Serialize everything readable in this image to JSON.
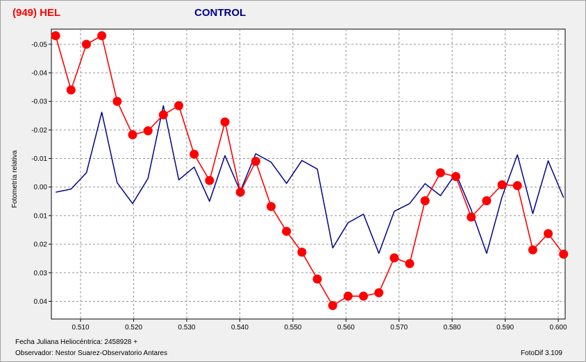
{
  "header": {
    "left_title": "(949) HEL",
    "right_title": "CONTROL",
    "left_color": "#ff0000",
    "right_color": "#00008b"
  },
  "axes": {
    "ylabel": "Fotometría relativa"
  },
  "footer": {
    "jd_label": "Fecha Juliana Heliocéntrica: 2458928 +",
    "observer": "Observador: Nestor Suarez-Observatorio Antares",
    "software": "FotoDif 3.109"
  },
  "chart_data": {
    "type": "line",
    "title": "",
    "xlabel": "",
    "ylabel": "Fotometría relativa",
    "xlim": [
      0.5045,
      0.6013
    ],
    "ylim": [
      -0.0553,
      0.0462
    ],
    "y_inverted": true,
    "grid": true,
    "x_ticks": [
      {
        "value": 0.51,
        "label": "0.510"
      },
      {
        "value": 0.52,
        "label": "0.520"
      },
      {
        "value": 0.53,
        "label": "0.530"
      },
      {
        "value": 0.54,
        "label": "0.540"
      },
      {
        "value": 0.55,
        "label": "0.550"
      },
      {
        "value": 0.56,
        "label": "0.560"
      },
      {
        "value": 0.57,
        "label": "0.570"
      },
      {
        "value": 0.58,
        "label": "0.580"
      },
      {
        "value": 0.59,
        "label": "0.590"
      },
      {
        "value": 0.6,
        "label": "0.600"
      }
    ],
    "y_ticks": [
      {
        "value": -0.05,
        "label": "-0.05"
      },
      {
        "value": -0.04,
        "label": "-0.04"
      },
      {
        "value": -0.03,
        "label": "-0.03"
      },
      {
        "value": -0.02,
        "label": "-0.02"
      },
      {
        "value": -0.01,
        "label": "-0.01"
      },
      {
        "value": 0.0,
        "label": "0.00"
      },
      {
        "value": 0.01,
        "label": "0.01"
      },
      {
        "value": 0.02,
        "label": "0.02"
      },
      {
        "value": 0.03,
        "label": "0.03"
      },
      {
        "value": 0.04,
        "label": "0.04"
      }
    ],
    "series": [
      {
        "name": "(949) HEL",
        "color": "#ff0000",
        "marker": "circle",
        "x": [
          0.5053,
          0.5082,
          0.5111,
          0.514,
          0.5169,
          0.5198,
          0.5227,
          0.5256,
          0.5285,
          0.5314,
          0.5343,
          0.5372,
          0.5401,
          0.543,
          0.5459,
          0.5488,
          0.5517,
          0.5546,
          0.5575,
          0.5604,
          0.5633,
          0.5662,
          0.5691,
          0.572,
          0.5749,
          0.5778,
          0.5807,
          0.5836,
          0.5865,
          0.5894,
          0.5923,
          0.5952,
          0.5981,
          0.601
        ],
        "y": [
          -0.053,
          -0.034,
          -0.05,
          -0.053,
          -0.03,
          -0.0183,
          -0.0197,
          -0.0253,
          -0.0285,
          -0.0115,
          -0.0023,
          -0.0228,
          0.0018,
          -0.009,
          0.0068,
          0.0155,
          0.0228,
          0.0322,
          0.0415,
          0.0382,
          0.0382,
          0.037,
          0.0248,
          0.0268,
          0.0048,
          -0.005,
          -0.0037,
          0.0105,
          0.0048,
          -0.0008,
          -0.0005,
          0.022,
          0.0163,
          0.0235
        ]
      },
      {
        "name": "CONTROL",
        "color": "#00008b",
        "marker": "none",
        "x": [
          0.5053,
          0.5082,
          0.5111,
          0.514,
          0.5169,
          0.5198,
          0.5227,
          0.5256,
          0.5285,
          0.5314,
          0.5343,
          0.5372,
          0.5401,
          0.543,
          0.5459,
          0.5488,
          0.5517,
          0.5546,
          0.5575,
          0.5604,
          0.5633,
          0.5662,
          0.5691,
          0.572,
          0.5749,
          0.5778,
          0.5807,
          0.5836,
          0.5865,
          0.5894,
          0.5923,
          0.5952,
          0.5981,
          0.601
        ],
        "y": [
          0.0018,
          0.0007,
          -0.005,
          -0.0262,
          -0.0015,
          0.0058,
          -0.003,
          -0.0285,
          -0.0025,
          -0.007,
          0.005,
          -0.011,
          0.0015,
          -0.0117,
          -0.0087,
          -0.0013,
          -0.0093,
          -0.0063,
          0.0213,
          0.0125,
          0.0095,
          0.0232,
          0.0085,
          0.0058,
          -0.0012,
          0.003,
          -0.0048,
          0.008,
          0.0232,
          0.0035,
          -0.0113,
          0.0093,
          -0.0092,
          0.0037
        ]
      }
    ]
  }
}
